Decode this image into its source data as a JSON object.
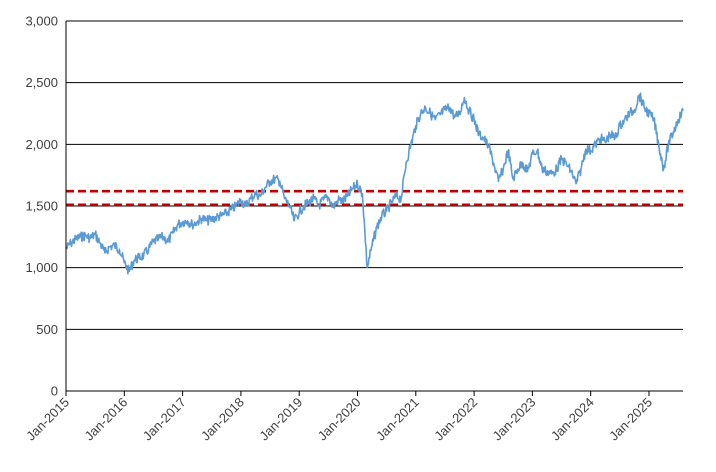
{
  "chart_data": {
    "type": "line",
    "title": "",
    "xlabel": "",
    "ylabel": "",
    "ylim": [
      0,
      3000
    ],
    "xlim": [
      "2015-01",
      "2025-08"
    ],
    "grid": "horizontal",
    "legend": "none",
    "y_ticks": [
      "0",
      "500",
      "1,000",
      "1,500",
      "2,000",
      "2,500",
      "3,000"
    ],
    "x_ticks": [
      "Jan-2015",
      "Jan-2016",
      "Jan-2017",
      "Jan-2018",
      "Jan-2019",
      "Jan-2020",
      "Jan-2021",
      "Jan-2022",
      "Jan-2023",
      "Jan-2024",
      "Jan-2025"
    ],
    "reference_lines": [
      {
        "y": 1620,
        "color": "#c00000",
        "style": "dashed"
      },
      {
        "y": 1510,
        "color": "#c00000",
        "style": "dashed"
      }
    ],
    "series": [
      {
        "color": "#5b9bd5",
        "points": [
          [
            "2015-01",
            1150
          ],
          [
            "2015-02",
            1200
          ],
          [
            "2015-03",
            1230
          ],
          [
            "2015-04",
            1250
          ],
          [
            "2015-05",
            1260
          ],
          [
            "2015-06",
            1240
          ],
          [
            "2015-07",
            1270
          ],
          [
            "2015-08",
            1200
          ],
          [
            "2015-09",
            1120
          ],
          [
            "2015-10",
            1170
          ],
          [
            "2015-11",
            1180
          ],
          [
            "2015-12",
            1150
          ],
          [
            "2016-01",
            1040
          ],
          [
            "2016-02",
            970
          ],
          [
            "2016-03",
            1060
          ],
          [
            "2016-04",
            1080
          ],
          [
            "2016-05",
            1100
          ],
          [
            "2016-06",
            1150
          ],
          [
            "2016-07",
            1210
          ],
          [
            "2016-08",
            1230
          ],
          [
            "2016-09",
            1250
          ],
          [
            "2016-10",
            1210
          ],
          [
            "2016-11",
            1280
          ],
          [
            "2016-12",
            1350
          ],
          [
            "2017-01",
            1370
          ],
          [
            "2017-02",
            1380
          ],
          [
            "2017-03",
            1350
          ],
          [
            "2017-04",
            1370
          ],
          [
            "2017-05",
            1400
          ],
          [
            "2017-06",
            1380
          ],
          [
            "2017-07",
            1390
          ],
          [
            "2017-08",
            1410
          ],
          [
            "2017-09",
            1420
          ],
          [
            "2017-10",
            1440
          ],
          [
            "2017-11",
            1470
          ],
          [
            "2017-12",
            1500
          ],
          [
            "2018-01",
            1550
          ],
          [
            "2018-02",
            1500
          ],
          [
            "2018-03",
            1560
          ],
          [
            "2018-04",
            1600
          ],
          [
            "2018-05",
            1580
          ],
          [
            "2018-06",
            1650
          ],
          [
            "2018-07",
            1700
          ],
          [
            "2018-08",
            1720
          ],
          [
            "2018-09",
            1700
          ],
          [
            "2018-10",
            1560
          ],
          [
            "2018-11",
            1500
          ],
          [
            "2018-12",
            1380
          ],
          [
            "2019-01",
            1450
          ],
          [
            "2019-02",
            1500
          ],
          [
            "2019-03",
            1530
          ],
          [
            "2019-04",
            1560
          ],
          [
            "2019-05",
            1500
          ],
          [
            "2019-06",
            1550
          ],
          [
            "2019-07",
            1570
          ],
          [
            "2019-08",
            1490
          ],
          [
            "2019-09",
            1550
          ],
          [
            "2019-10",
            1540
          ],
          [
            "2019-11",
            1580
          ],
          [
            "2019-12",
            1640
          ],
          [
            "2020-01",
            1680
          ],
          [
            "2020-02",
            1600
          ],
          [
            "2020-03",
            1000
          ],
          [
            "2020-04",
            1180
          ],
          [
            "2020-05",
            1330
          ],
          [
            "2020-06",
            1420
          ],
          [
            "2020-07",
            1460
          ],
          [
            "2020-08",
            1530
          ],
          [
            "2020-09",
            1580
          ],
          [
            "2020-10",
            1560
          ],
          [
            "2020-11",
            1850
          ],
          [
            "2020-12",
            2000
          ],
          [
            "2021-01",
            2150
          ],
          [
            "2021-02",
            2250
          ],
          [
            "2021-03",
            2300
          ],
          [
            "2021-04",
            2250
          ],
          [
            "2021-05",
            2200
          ],
          [
            "2021-06",
            2240
          ],
          [
            "2021-07",
            2280
          ],
          [
            "2021-08",
            2300
          ],
          [
            "2021-09",
            2220
          ],
          [
            "2021-10",
            2250
          ],
          [
            "2021-11",
            2380
          ],
          [
            "2021-12",
            2270
          ],
          [
            "2022-01",
            2200
          ],
          [
            "2022-02",
            2080
          ],
          [
            "2022-03",
            2050
          ],
          [
            "2022-04",
            1980
          ],
          [
            "2022-05",
            1850
          ],
          [
            "2022-06",
            1700
          ],
          [
            "2022-07",
            1800
          ],
          [
            "2022-08",
            1950
          ],
          [
            "2022-09",
            1720
          ],
          [
            "2022-10",
            1800
          ],
          [
            "2022-11",
            1850
          ],
          [
            "2022-12",
            1780
          ],
          [
            "2023-01",
            1920
          ],
          [
            "2023-02",
            1950
          ],
          [
            "2023-03",
            1800
          ],
          [
            "2023-04",
            1780
          ],
          [
            "2023-05",
            1760
          ],
          [
            "2023-06",
            1800
          ],
          [
            "2023-07",
            1880
          ],
          [
            "2023-08",
            1840
          ],
          [
            "2023-09",
            1780
          ],
          [
            "2023-10",
            1680
          ],
          [
            "2023-11",
            1800
          ],
          [
            "2023-12",
            1960
          ],
          [
            "2024-01",
            1950
          ],
          [
            "2024-02",
            2000
          ],
          [
            "2024-03",
            2050
          ],
          [
            "2024-04",
            2020
          ],
          [
            "2024-05",
            2080
          ],
          [
            "2024-06",
            2050
          ],
          [
            "2024-07",
            2150
          ],
          [
            "2024-08",
            2200
          ],
          [
            "2024-09",
            2250
          ],
          [
            "2024-10",
            2280
          ],
          [
            "2024-11",
            2400
          ],
          [
            "2024-12",
            2300
          ],
          [
            "2025-01",
            2250
          ],
          [
            "2025-02",
            2200
          ],
          [
            "2025-03",
            2000
          ],
          [
            "2025-04",
            1800
          ],
          [
            "2025-05",
            2000
          ],
          [
            "2025-06",
            2100
          ],
          [
            "2025-07",
            2200
          ],
          [
            "2025-08",
            2270
          ]
        ]
      }
    ]
  }
}
